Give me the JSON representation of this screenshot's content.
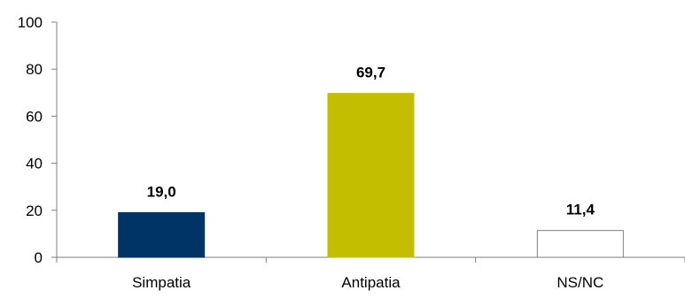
{
  "chart_data": {
    "type": "bar",
    "categories": [
      "Simpatia",
      "Antipatia",
      "NS/NC"
    ],
    "values": [
      19.0,
      69.7,
      11.4
    ],
    "value_labels": [
      "19,0",
      "69,7",
      "11,4"
    ],
    "colors": [
      "#003366",
      "#c3bf00",
      "#ffffff"
    ],
    "outline_colors": [
      "#003366",
      "#c3bf00",
      "#7f7f7f"
    ],
    "ylim": [
      0,
      100
    ],
    "yticks": [
      0,
      20,
      40,
      60,
      80,
      100
    ],
    "ytick_labels": [
      "0",
      "20",
      "40",
      "60",
      "80",
      "100"
    ],
    "grid": false,
    "legend": "none",
    "title": "",
    "xlabel": "",
    "ylabel": ""
  }
}
